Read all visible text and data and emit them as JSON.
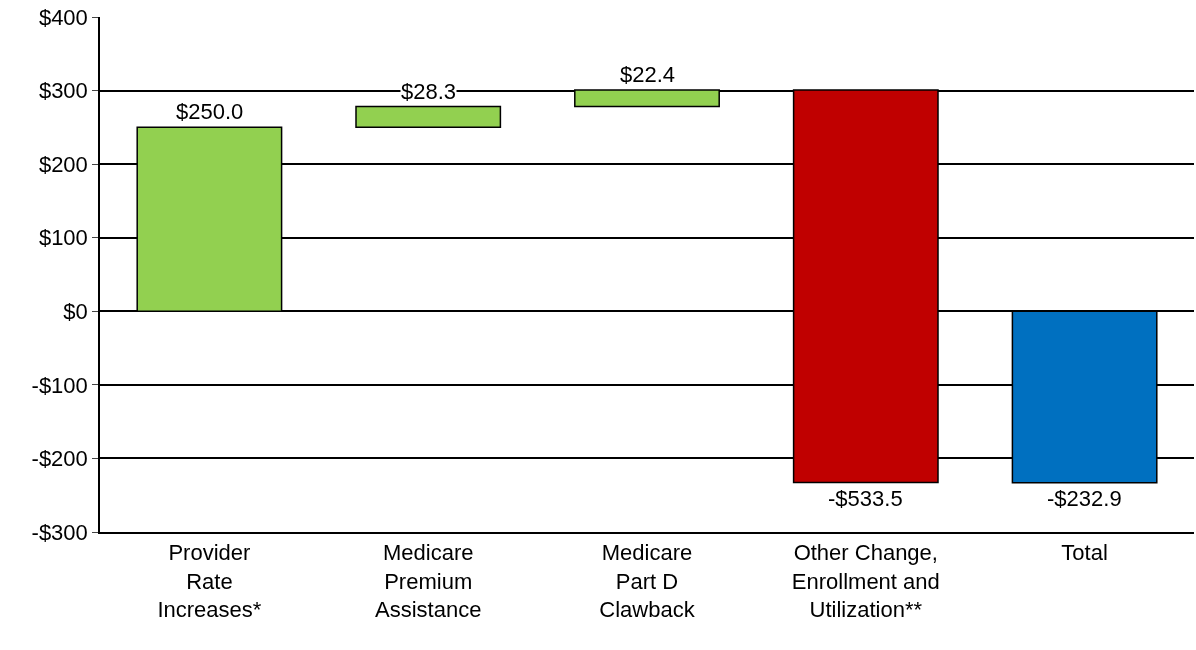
{
  "chart_data": {
    "type": "bar",
    "categories": [
      "Provider\nRate\nIncreases*",
      "Medicare\nPremium\nAssistance",
      "Medicare\nPart D\nClawback",
      "Other Change,\nEnrollment and\nUtilization**",
      "Total"
    ],
    "values": [
      250.0,
      28.3,
      22.4,
      -533.5,
      -232.9
    ],
    "base": [
      0,
      250.0,
      278.3,
      300.7,
      0
    ],
    "colors": [
      "#92d050",
      "#92d050",
      "#92d050",
      "#c00000",
      "#0070c0"
    ],
    "value_labels": [
      "$250.0",
      "$28.3",
      "$22.4",
      "-$533.5",
      "-$232.9"
    ],
    "ylim": [
      -300,
      400
    ],
    "yticks": [
      {
        "value": -300,
        "label": "-$300"
      },
      {
        "value": -200,
        "label": "-$200"
      },
      {
        "value": -100,
        "label": "-$100"
      },
      {
        "value": 0,
        "label": "$0"
      },
      {
        "value": 100,
        "label": "$100"
      },
      {
        "value": 200,
        "label": "$200"
      },
      {
        "value": 300,
        "label": "$300"
      },
      {
        "value": 400,
        "label": "$400"
      }
    ],
    "grid": "y"
  }
}
